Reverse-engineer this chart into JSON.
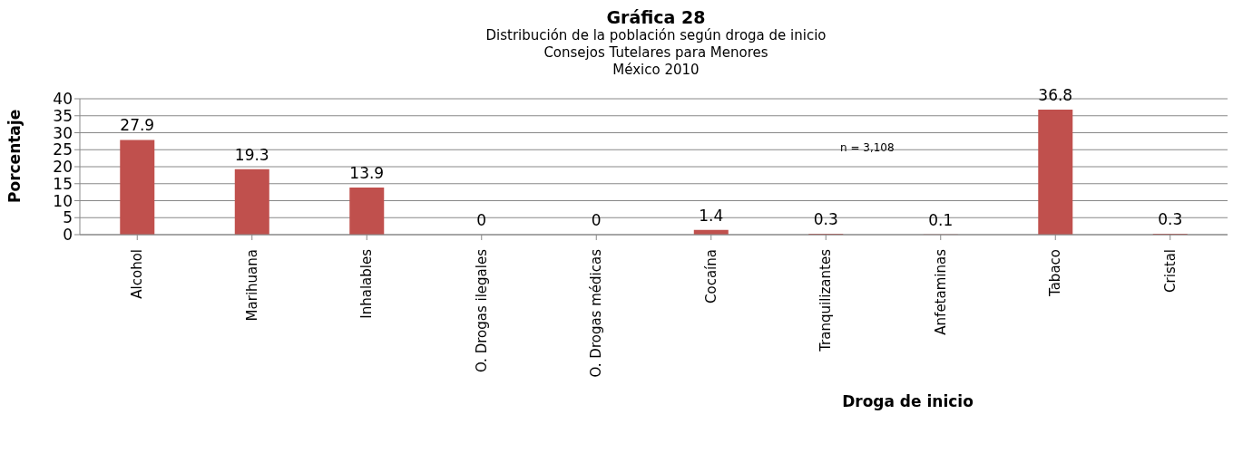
{
  "chart_data": {
    "type": "bar",
    "title": "Gráfica 28",
    "subtitle": "Distribución de la población según droga de inicio\nConsejos Tutelares para Menores\nMéxico 2010",
    "xlabel": "Droga de inicio",
    "ylabel": "Porcentaje",
    "categories": [
      "Alcohol",
      "Marihuana",
      "Inhalables",
      "O. Drogas ilegales",
      "O. Drogas médicas",
      "Cocaína",
      "Tranquilizantes",
      "Anfetaminas",
      "Tabaco",
      "Cristal"
    ],
    "values": [
      27.9,
      19.3,
      13.9,
      0,
      0,
      1.4,
      0.3,
      0.1,
      36.8,
      0.3
    ],
    "color": "#c0504d",
    "ylim": [
      0,
      40
    ],
    "yticks": [
      0,
      5,
      10,
      15,
      20,
      25,
      30,
      35,
      40
    ],
    "grid": "y",
    "data_labels": true,
    "annotations": [
      "n = 3,108"
    ]
  }
}
